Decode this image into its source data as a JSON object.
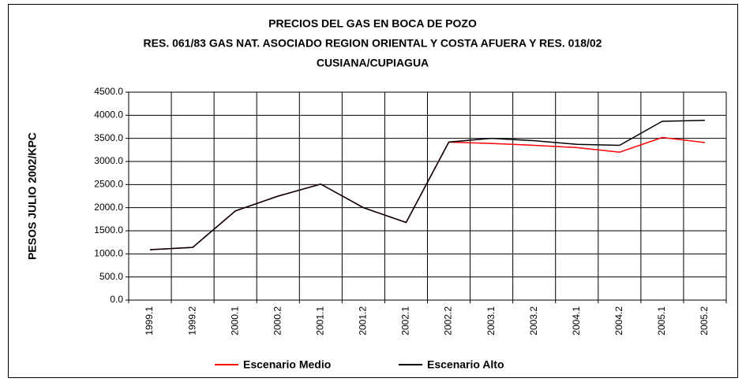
{
  "chart_data": {
    "type": "line",
    "title": [
      "PRECIOS DEL GAS EN BOCA DE POZO",
      "RES. 061/83 GAS NAT. ASOCIADO REGION ORIENTAL Y COSTA AFUERA Y RES. 018/02",
      "CUSIANA/CUPIAGUA"
    ],
    "y_label": "PESOS JULIO 2002/KPC",
    "categories": [
      "1999.1",
      "1999.2",
      "2000.1",
      "2000.2",
      "2001.1",
      "2001.2",
      "2002.1",
      "2002.2",
      "2003.1",
      "2003.2",
      "2004.1",
      "2004.2",
      "2005.1",
      "2005.2"
    ],
    "series": [
      {
        "name": "Escenario Medio",
        "color": "#ff0000",
        "values": [
          1090,
          1140,
          1930,
          2250,
          2510,
          2000,
          1680,
          3420,
          3390,
          3350,
          3300,
          3200,
          3520,
          3410
        ]
      },
      {
        "name": "Escenario Alto",
        "color": "#000000",
        "values": [
          1090,
          1140,
          1930,
          2250,
          2510,
          2000,
          1680,
          3420,
          3500,
          3450,
          3370,
          3350,
          3870,
          3890
        ]
      }
    ],
    "ylim": [
      0,
      4500
    ],
    "yticks": [
      {
        "value": 0,
        "label": "0.0"
      },
      {
        "value": 500,
        "label": "500.0"
      },
      {
        "value": 1000,
        "label": "1000.0"
      },
      {
        "value": 1500,
        "label": "1500.0"
      },
      {
        "value": 2000,
        "label": "2000.0"
      },
      {
        "value": 2500,
        "label": "2500.0"
      },
      {
        "value": 3000,
        "label": "3000.0"
      },
      {
        "value": 3500,
        "label": "3500.0"
      },
      {
        "value": 4000,
        "label": "4000.0"
      },
      {
        "value": 4500,
        "label": "4500.0"
      }
    ],
    "grid": true,
    "legend": "bottom"
  }
}
